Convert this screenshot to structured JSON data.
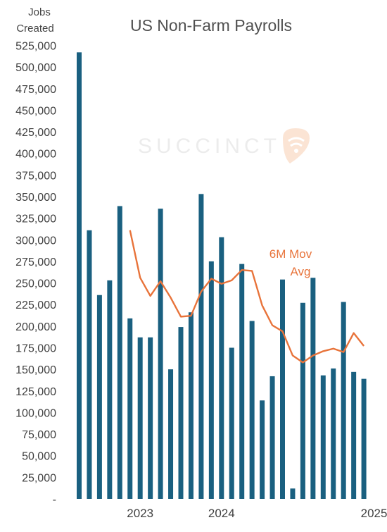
{
  "chart_data": {
    "type": "bar",
    "title": "US Non-Farm Payrolls",
    "ylabel_lines": [
      "Jobs",
      "Created"
    ],
    "ylim": [
      0,
      525000
    ],
    "yticks": [
      {
        "value": 0,
        "label": "-"
      },
      {
        "value": 25000,
        "label": "25,000"
      },
      {
        "value": 50000,
        "label": "50,000"
      },
      {
        "value": 75000,
        "label": "75,000"
      },
      {
        "value": 100000,
        "label": "100,000"
      },
      {
        "value": 125000,
        "label": "125,000"
      },
      {
        "value": 150000,
        "label": "150,000"
      },
      {
        "value": 175000,
        "label": "175,000"
      },
      {
        "value": 200000,
        "label": "200,000"
      },
      {
        "value": 225000,
        "label": "225,000"
      },
      {
        "value": 250000,
        "label": "250,000"
      },
      {
        "value": 275000,
        "label": "275,000"
      },
      {
        "value": 300000,
        "label": "300,000"
      },
      {
        "value": 325000,
        "label": "325,000"
      },
      {
        "value": 350000,
        "label": "350,000"
      },
      {
        "value": 375000,
        "label": "375,000"
      },
      {
        "value": 400000,
        "label": "400,000"
      },
      {
        "value": 425000,
        "label": "425,000"
      },
      {
        "value": 450000,
        "label": "450,000"
      },
      {
        "value": 475000,
        "label": "475,000"
      },
      {
        "value": 500000,
        "label": "500,000"
      },
      {
        "value": 525000,
        "label": "525,000"
      }
    ],
    "x": [
      "2023-01",
      "2023-02",
      "2023-03",
      "2023-04",
      "2023-05",
      "2023-06",
      "2023-07",
      "2023-08",
      "2023-09",
      "2023-10",
      "2023-11",
      "2023-12",
      "2024-01",
      "2024-02",
      "2024-03",
      "2024-04",
      "2024-05",
      "2024-06",
      "2024-07",
      "2024-08",
      "2024-09",
      "2024-10",
      "2024-11",
      "2024-12",
      "2025-01",
      "2025-02",
      "2025-03",
      "2025-04",
      "2025-05",
      "2025-06",
      "2025-07"
    ],
    "xtick_labels": [
      {
        "x": "2023-07",
        "label": "2023"
      },
      {
        "x": "2024-03",
        "label": "2024"
      },
      {
        "x": "2025-06",
        "label": "2025"
      }
    ],
    "series": [
      {
        "kind": "bar",
        "color": "#1a6080",
        "values": [
          517000,
          311000,
          236000,
          253000,
          339000,
          209000,
          187000,
          187000,
          336000,
          150000,
          199000,
          216000,
          353000,
          275000,
          303000,
          175000,
          272000,
          206000,
          114000,
          142000,
          254000,
          12000,
          227000,
          256000,
          143000,
          151000,
          228000,
          147000,
          139000,
          null,
          null
        ]
      },
      {
        "kind": "line",
        "name": "6M Mov Avg",
        "color": "#e8733a",
        "values": [
          null,
          null,
          null,
          null,
          null,
          311000,
          256000,
          235000,
          252000,
          233000,
          211000,
          212000,
          240000,
          255000,
          249000,
          253000,
          265000,
          264000,
          224000,
          201000,
          194000,
          166000,
          158000,
          166000,
          171000,
          174000,
          170000,
          192000,
          177000,
          null,
          null
        ]
      }
    ],
    "annotation_lines": [
      "6M Mov",
      "Avg"
    ],
    "watermark": "SUCCINCT",
    "colors": {
      "bar": "#1a6080",
      "line": "#e8733a",
      "text": "#404040",
      "watermark": "#ececec",
      "watermark_logo": "#fbe4d4"
    }
  }
}
